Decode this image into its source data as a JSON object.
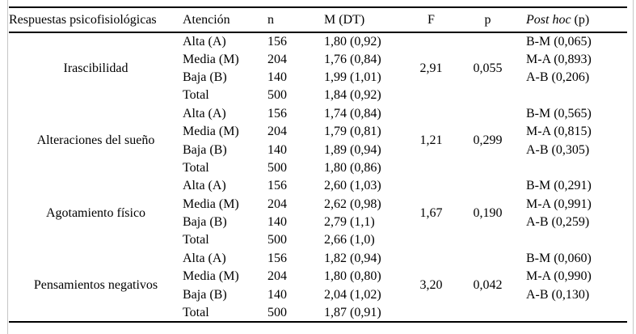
{
  "table": {
    "headers": {
      "responses": "Respuestas psicofisiológicas",
      "attention": "Atención",
      "n": "n",
      "m_dt": "M (DT)",
      "f": "F",
      "p": "p",
      "post_hoc_italic": "Post hoc",
      "post_hoc_rest": " (p)"
    },
    "groups": [
      {
        "label": "Irascibilidad",
        "f": "2,91",
        "p": "0,055",
        "rows": [
          {
            "attention": "Alta (A)",
            "n": "156",
            "m_dt": "1,80 (0,92)",
            "post_hoc": "B-M (0,065)"
          },
          {
            "attention": "Media (M)",
            "n": "204",
            "m_dt": "1,76 (0,84)",
            "post_hoc": "M-A (0,893)"
          },
          {
            "attention": "Baja (B)",
            "n": "140",
            "m_dt": "1,99 (1,01)",
            "post_hoc": "A-B (0,206)"
          },
          {
            "attention": "Total",
            "n": "500",
            "m_dt": "1,84 (0,92)",
            "post_hoc": ""
          }
        ]
      },
      {
        "label": "Alteraciones del sueño",
        "f": "1,21",
        "p": "0,299",
        "rows": [
          {
            "attention": "Alta (A)",
            "n": "156",
            "m_dt": "1,74 (0,84)",
            "post_hoc": "B-M (0,565)"
          },
          {
            "attention": "Media (M)",
            "n": "204",
            "m_dt": "1,79 (0,81)",
            "post_hoc": "M-A (0,815)"
          },
          {
            "attention": "Baja (B)",
            "n": "140",
            "m_dt": "1,89 (0,94)",
            "post_hoc": "A-B (0,305)"
          },
          {
            "attention": "Total",
            "n": "500",
            "m_dt": "1,80 (0,86)",
            "post_hoc": ""
          }
        ]
      },
      {
        "label": "Agotamiento físico",
        "f": "1,67",
        "p": "0,190",
        "rows": [
          {
            "attention": "Alta (A)",
            "n": "156",
            "m_dt": "2,60 (1,03)",
            "post_hoc": "B-M (0,291)"
          },
          {
            "attention": "Media (M)",
            "n": "204",
            "m_dt": "2,62 (0,98)",
            "post_hoc": "M-A (0,991)"
          },
          {
            "attention": "Baja (B)",
            "n": "140",
            "m_dt": "2,79 (1,1)",
            "post_hoc": "A-B (0,259)"
          },
          {
            "attention": "Total",
            "n": "500",
            "m_dt": "2,66 (1,0)",
            "post_hoc": ""
          }
        ]
      },
      {
        "label": "Pensamientos negativos",
        "f": "3,20",
        "p": "0,042",
        "rows": [
          {
            "attention": "Alta (A)",
            "n": "156",
            "m_dt": "1,82 (0,94)",
            "post_hoc": "B-M (0,060)"
          },
          {
            "attention": "Media (M)",
            "n": "204",
            "m_dt": "1,80 (0,80)",
            "post_hoc": "M-A (0,990)"
          },
          {
            "attention": "Baja (B)",
            "n": "140",
            "m_dt": "2,04 (1,02)",
            "post_hoc": "A-B (0,130)"
          },
          {
            "attention": "Total",
            "n": "500",
            "m_dt": "1,87 (0,91)",
            "post_hoc": ""
          }
        ]
      }
    ]
  }
}
